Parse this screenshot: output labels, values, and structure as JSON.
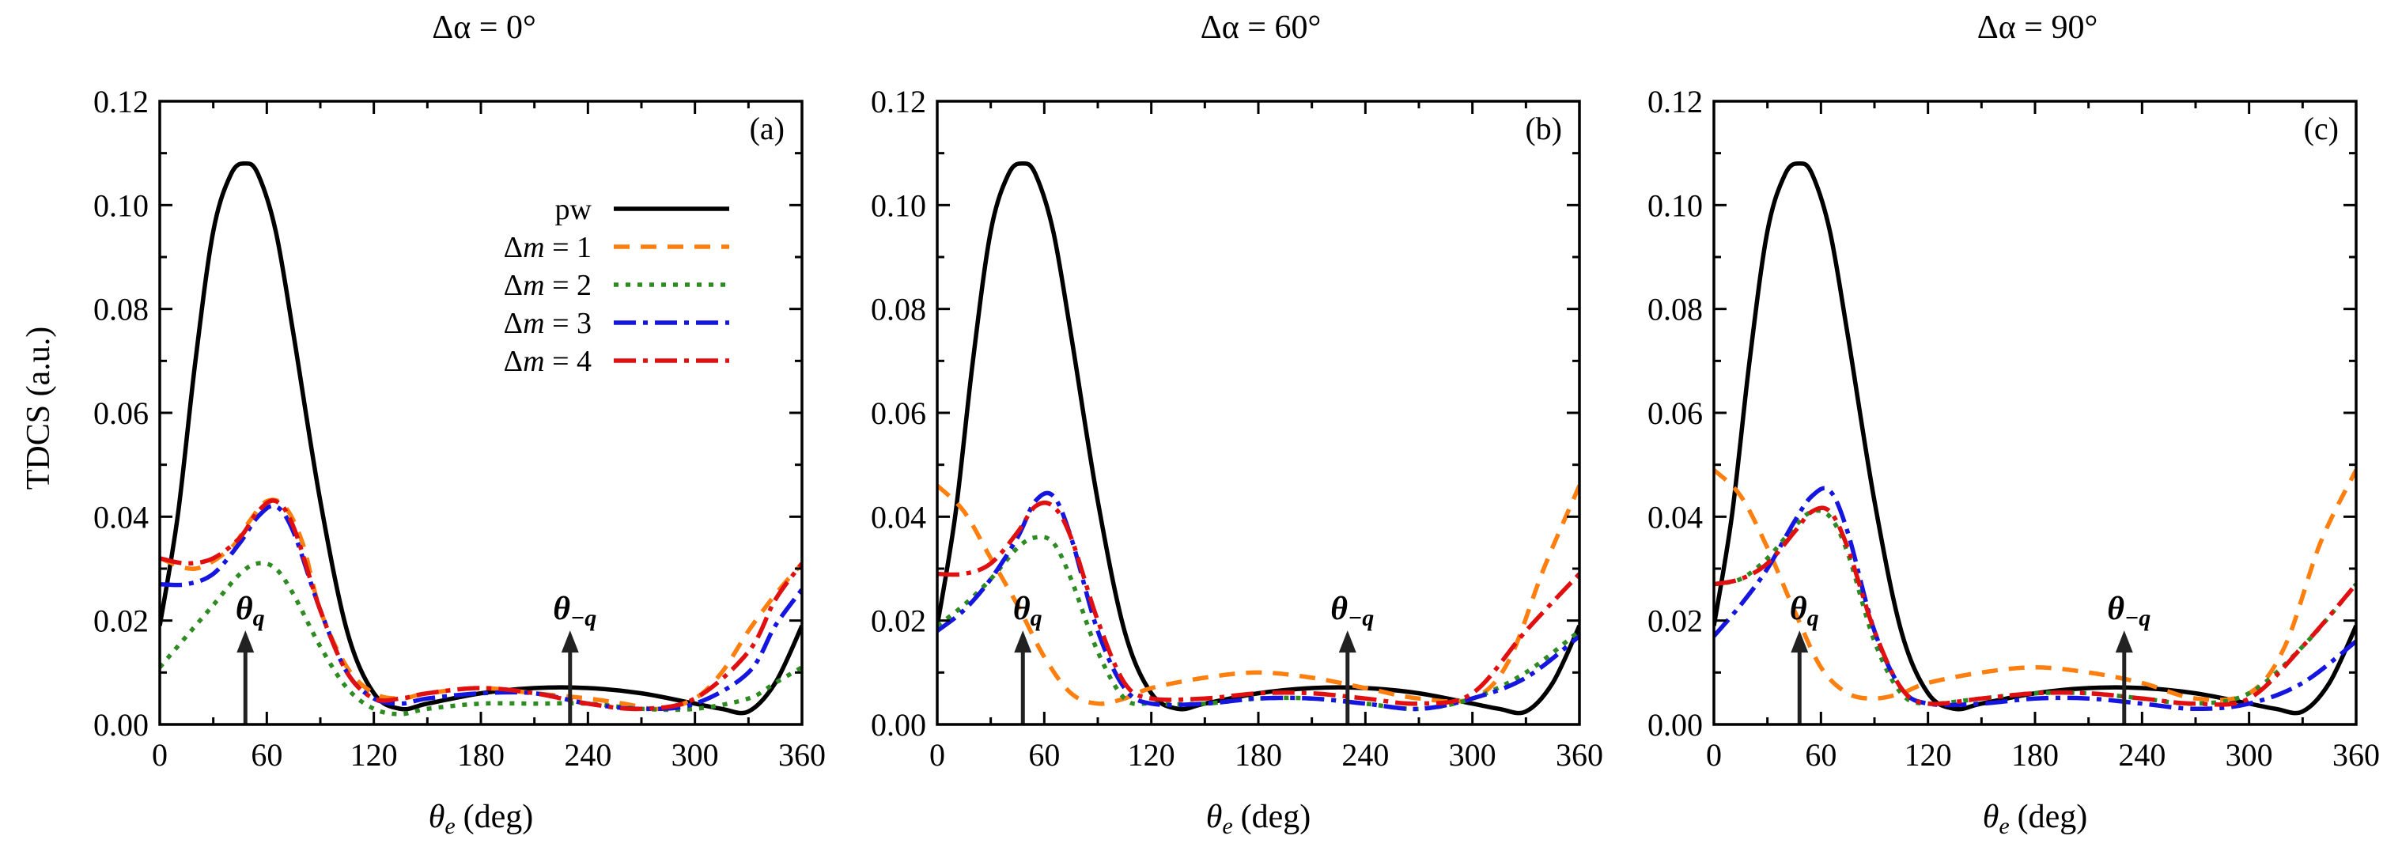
{
  "chart_data": [
    {
      "type": "line",
      "title": "Δα = 0°",
      "panel_label": "(a)",
      "xlabel_symbol": "θ",
      "xlabel_sub": "e",
      "xlabel_unit": "(deg)",
      "ylabel": "TDCS (a.u.)",
      "xlim": [
        0,
        360
      ],
      "ylim": [
        0,
        0.12
      ],
      "xticks": [
        "0",
        "60",
        "120",
        "180",
        "240",
        "300",
        "360"
      ],
      "yticks": [
        "0.00",
        "0.02",
        "0.04",
        "0.06",
        "0.08",
        "0.10",
        "0.12"
      ],
      "arrows": [
        {
          "x": 48,
          "label_main": "θ",
          "label_sub": "q"
        },
        {
          "x": 230,
          "label_main": "θ",
          "label_sub": "−q"
        }
      ],
      "legend": {
        "placement": "center-left",
        "entries": [
          {
            "prefix": "pw",
            "var": "",
            "value": ""
          },
          {
            "prefix": "Δ",
            "var": "m",
            "value": " = 1"
          },
          {
            "prefix": "Δ",
            "var": "m",
            "value": " = 2"
          },
          {
            "prefix": "Δ",
            "var": "m",
            "value": " = 3"
          },
          {
            "prefix": "Δ",
            "var": "m",
            "value": " = 4"
          }
        ]
      },
      "series": [
        {
          "name": "pw",
          "x": [
            0,
            10,
            20,
            30,
            40,
            48,
            55,
            65,
            75,
            90,
            105,
            120,
            135,
            150,
            180,
            210,
            240,
            270,
            300,
            315,
            330,
            345,
            360
          ],
          "values": [
            0.019,
            0.04,
            0.07,
            0.095,
            0.106,
            0.108,
            0.106,
            0.095,
            0.075,
            0.043,
            0.018,
            0.006,
            0.003,
            0.004,
            0.006,
            0.007,
            0.007,
            0.006,
            0.004,
            0.003,
            0.0025,
            0.008,
            0.019
          ]
        },
        {
          "name": "Δm = 1",
          "x": [
            0,
            20,
            40,
            50,
            60,
            70,
            80,
            90,
            105,
            120,
            135,
            150,
            180,
            210,
            240,
            260,
            280,
            300,
            315,
            330,
            345,
            360
          ],
          "values": [
            0.032,
            0.03,
            0.034,
            0.039,
            0.043,
            0.042,
            0.035,
            0.022,
            0.011,
            0.006,
            0.005,
            0.006,
            0.007,
            0.006,
            0.005,
            0.004,
            0.003,
            0.005,
            0.01,
            0.018,
            0.025,
            0.031
          ]
        },
        {
          "name": "Δm = 2",
          "x": [
            0,
            15,
            30,
            45,
            55,
            65,
            75,
            90,
            105,
            120,
            135,
            150,
            180,
            210,
            240,
            270,
            300,
            330,
            345,
            360
          ],
          "values": [
            0.011,
            0.017,
            0.023,
            0.029,
            0.031,
            0.03,
            0.025,
            0.015,
            0.007,
            0.003,
            0.002,
            0.003,
            0.004,
            0.004,
            0.004,
            0.003,
            0.003,
            0.005,
            0.008,
            0.011
          ]
        },
        {
          "name": "Δm = 3",
          "x": [
            0,
            15,
            30,
            45,
            55,
            65,
            75,
            90,
            105,
            120,
            135,
            150,
            180,
            210,
            240,
            270,
            300,
            330,
            345,
            360
          ],
          "values": [
            0.027,
            0.027,
            0.029,
            0.035,
            0.04,
            0.042,
            0.037,
            0.022,
            0.01,
            0.005,
            0.004,
            0.005,
            0.006,
            0.006,
            0.004,
            0.003,
            0.004,
            0.01,
            0.019,
            0.026
          ]
        },
        {
          "name": "Δm = 4",
          "x": [
            0,
            15,
            30,
            45,
            55,
            65,
            75,
            90,
            105,
            120,
            135,
            150,
            180,
            210,
            240,
            270,
            300,
            330,
            345,
            360
          ],
          "values": [
            0.032,
            0.031,
            0.032,
            0.036,
            0.041,
            0.043,
            0.038,
            0.022,
            0.01,
            0.005,
            0.005,
            0.006,
            0.007,
            0.006,
            0.004,
            0.003,
            0.005,
            0.014,
            0.024,
            0.031
          ]
        }
      ]
    },
    {
      "type": "line",
      "title": "Δα = 60°",
      "panel_label": "(b)",
      "xlabel_symbol": "θ",
      "xlabel_sub": "e",
      "xlabel_unit": "(deg)",
      "xlim": [
        0,
        360
      ],
      "ylim": [
        0,
        0.12
      ],
      "xticks": [
        "0",
        "60",
        "120",
        "180",
        "240",
        "300",
        "360"
      ],
      "yticks": [
        "0.00",
        "0.02",
        "0.04",
        "0.06",
        "0.08",
        "0.10",
        "0.12"
      ],
      "arrows": [
        {
          "x": 48,
          "label_main": "θ",
          "label_sub": "q"
        },
        {
          "x": 230,
          "label_main": "θ",
          "label_sub": "−q"
        }
      ],
      "series": [
        {
          "name": "pw",
          "x": [
            0,
            10,
            20,
            30,
            40,
            48,
            55,
            65,
            75,
            90,
            105,
            120,
            135,
            150,
            180,
            210,
            240,
            270,
            300,
            315,
            330,
            345,
            360
          ],
          "values": [
            0.019,
            0.04,
            0.07,
            0.095,
            0.106,
            0.108,
            0.106,
            0.095,
            0.075,
            0.043,
            0.018,
            0.006,
            0.003,
            0.004,
            0.006,
            0.007,
            0.007,
            0.006,
            0.004,
            0.003,
            0.0025,
            0.008,
            0.019
          ]
        },
        {
          "name": "Δm = 1",
          "x": [
            0,
            15,
            30,
            45,
            60,
            75,
            90,
            105,
            120,
            150,
            180,
            210,
            240,
            270,
            300,
            320,
            340,
            360
          ],
          "values": [
            0.046,
            0.041,
            0.032,
            0.023,
            0.013,
            0.006,
            0.004,
            0.005,
            0.007,
            0.009,
            0.01,
            0.009,
            0.007,
            0.005,
            0.005,
            0.012,
            0.03,
            0.046
          ]
        },
        {
          "name": "Δm = 2",
          "x": [
            0,
            15,
            30,
            45,
            55,
            65,
            75,
            90,
            105,
            120,
            150,
            180,
            210,
            240,
            270,
            300,
            330,
            360
          ],
          "values": [
            0.019,
            0.023,
            0.028,
            0.034,
            0.036,
            0.035,
            0.028,
            0.014,
            0.005,
            0.004,
            0.004,
            0.005,
            0.005,
            0.004,
            0.003,
            0.005,
            0.01,
            0.018
          ]
        },
        {
          "name": "Δm = 3",
          "x": [
            0,
            15,
            30,
            45,
            55,
            65,
            75,
            90,
            105,
            120,
            150,
            180,
            210,
            240,
            270,
            300,
            330,
            360
          ],
          "values": [
            0.018,
            0.022,
            0.028,
            0.036,
            0.043,
            0.044,
            0.036,
            0.018,
            0.007,
            0.004,
            0.004,
            0.005,
            0.005,
            0.004,
            0.003,
            0.005,
            0.009,
            0.017
          ]
        },
        {
          "name": "Δm = 4",
          "x": [
            0,
            15,
            30,
            45,
            55,
            65,
            75,
            90,
            105,
            120,
            150,
            180,
            210,
            240,
            270,
            300,
            330,
            360
          ],
          "values": [
            0.029,
            0.029,
            0.031,
            0.037,
            0.042,
            0.042,
            0.036,
            0.02,
            0.008,
            0.005,
            0.005,
            0.006,
            0.006,
            0.005,
            0.004,
            0.006,
            0.018,
            0.029
          ]
        }
      ]
    },
    {
      "type": "line",
      "title": "Δα = 90°",
      "panel_label": "(c)",
      "xlabel_symbol": "θ",
      "xlabel_sub": "e",
      "xlabel_unit": "(deg)",
      "xlim": [
        0,
        360
      ],
      "ylim": [
        0,
        0.12
      ],
      "xticks": [
        "0",
        "60",
        "120",
        "180",
        "240",
        "300",
        "360"
      ],
      "yticks": [
        "0.00",
        "0.02",
        "0.04",
        "0.06",
        "0.08",
        "0.10",
        "0.12"
      ],
      "arrows": [
        {
          "x": 48,
          "label_main": "θ",
          "label_sub": "q"
        },
        {
          "x": 230,
          "label_main": "θ",
          "label_sub": "−q"
        }
      ],
      "series": [
        {
          "name": "pw",
          "x": [
            0,
            10,
            20,
            30,
            40,
            48,
            55,
            65,
            75,
            90,
            105,
            120,
            135,
            150,
            180,
            210,
            240,
            270,
            300,
            315,
            330,
            345,
            360
          ],
          "values": [
            0.019,
            0.04,
            0.07,
            0.095,
            0.106,
            0.108,
            0.106,
            0.095,
            0.075,
            0.043,
            0.018,
            0.006,
            0.003,
            0.004,
            0.006,
            0.007,
            0.007,
            0.006,
            0.004,
            0.003,
            0.0025,
            0.008,
            0.019
          ]
        },
        {
          "name": "Δm = 1",
          "x": [
            0,
            15,
            30,
            45,
            60,
            75,
            90,
            105,
            120,
            150,
            180,
            210,
            240,
            270,
            300,
            320,
            340,
            360
          ],
          "values": [
            0.049,
            0.044,
            0.034,
            0.022,
            0.011,
            0.006,
            0.005,
            0.006,
            0.008,
            0.01,
            0.011,
            0.01,
            0.008,
            0.005,
            0.006,
            0.015,
            0.035,
            0.049
          ]
        },
        {
          "name": "Δm = 2",
          "x": [
            0,
            15,
            30,
            45,
            55,
            65,
            75,
            90,
            105,
            120,
            150,
            180,
            210,
            240,
            270,
            300,
            330,
            360
          ],
          "values": [
            0.027,
            0.028,
            0.032,
            0.038,
            0.041,
            0.04,
            0.033,
            0.016,
            0.006,
            0.004,
            0.005,
            0.006,
            0.006,
            0.005,
            0.004,
            0.006,
            0.015,
            0.027
          ]
        },
        {
          "name": "Δm = 3",
          "x": [
            0,
            15,
            30,
            45,
            55,
            65,
            75,
            90,
            105,
            120,
            150,
            180,
            210,
            240,
            270,
            300,
            330,
            360
          ],
          "values": [
            0.017,
            0.023,
            0.03,
            0.039,
            0.044,
            0.045,
            0.037,
            0.018,
            0.007,
            0.004,
            0.004,
            0.005,
            0.005,
            0.004,
            0.003,
            0.004,
            0.008,
            0.016
          ]
        },
        {
          "name": "Δm = 4",
          "x": [
            0,
            15,
            30,
            45,
            55,
            65,
            75,
            90,
            105,
            120,
            150,
            180,
            210,
            240,
            270,
            300,
            330,
            360
          ],
          "values": [
            0.027,
            0.028,
            0.031,
            0.037,
            0.041,
            0.041,
            0.034,
            0.018,
            0.007,
            0.004,
            0.005,
            0.006,
            0.006,
            0.005,
            0.004,
            0.005,
            0.015,
            0.027
          ]
        }
      ]
    }
  ],
  "styles": {
    "pw": {
      "color": "#000000",
      "dash": ""
    },
    "Δm = 1": {
      "color": "#ff7f0e",
      "dash": "20,14"
    },
    "Δm = 2": {
      "color": "#2e8b22",
      "dash": "6,9"
    },
    "Δm = 3": {
      "color": "#1515e0",
      "dash": "28,9,6,9"
    },
    "Δm = 4": {
      "color": "#e01010",
      "dash": "28,9,6,9"
    }
  }
}
